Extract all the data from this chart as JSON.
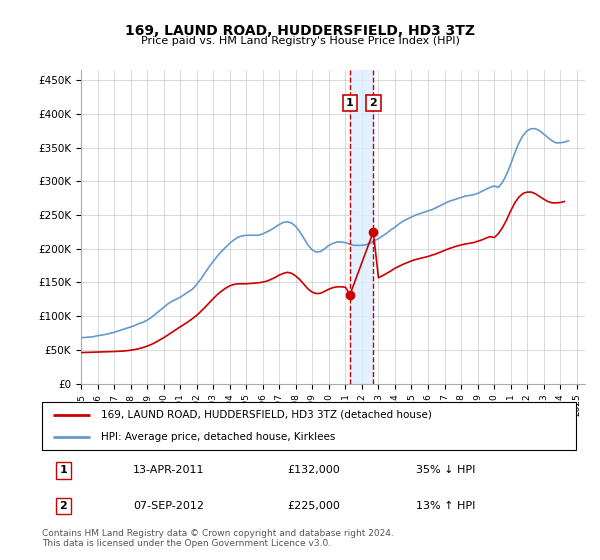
{
  "title": "169, LAUND ROAD, HUDDERSFIELD, HD3 3TZ",
  "subtitle": "Price paid vs. HM Land Registry's House Price Index (HPI)",
  "ylabel_ticks": [
    "£0",
    "£50K",
    "£100K",
    "£150K",
    "£200K",
    "£250K",
    "£300K",
    "£350K",
    "£400K",
    "£450K"
  ],
  "ylim": [
    0,
    465000
  ],
  "xlim_start": 1995.0,
  "xlim_end": 2025.5,
  "transaction1": {
    "date": "13-APR-2011",
    "price": 132000,
    "label": "1",
    "x": 2011.28,
    "hpi_relation": "35% ↓ HPI"
  },
  "transaction2": {
    "date": "07-SEP-2012",
    "price": 225000,
    "label": "2",
    "x": 2012.69,
    "hpi_relation": "13% ↑ HPI"
  },
  "legend_property": "169, LAUND ROAD, HUDDERSFIELD, HD3 3TZ (detached house)",
  "legend_hpi": "HPI: Average price, detached house, Kirklees",
  "footnote": "Contains HM Land Registry data © Crown copyright and database right 2024.\nThis data is licensed under the Open Government Licence v3.0.",
  "color_property": "#cc0000",
  "color_hpi": "#6699cc",
  "color_vline": "#cc0000",
  "color_box_fill": "#ddeeff",
  "grid_color": "#cccccc",
  "background_color": "#ffffff",
  "hpi_data_x": [
    1995.0,
    1995.25,
    1995.5,
    1995.75,
    1996.0,
    1996.25,
    1996.5,
    1996.75,
    1997.0,
    1997.25,
    1997.5,
    1997.75,
    1998.0,
    1998.25,
    1998.5,
    1998.75,
    1999.0,
    1999.25,
    1999.5,
    1999.75,
    2000.0,
    2000.25,
    2000.5,
    2000.75,
    2001.0,
    2001.25,
    2001.5,
    2001.75,
    2002.0,
    2002.25,
    2002.5,
    2002.75,
    2003.0,
    2003.25,
    2003.5,
    2003.75,
    2004.0,
    2004.25,
    2004.5,
    2004.75,
    2005.0,
    2005.25,
    2005.5,
    2005.75,
    2006.0,
    2006.25,
    2006.5,
    2006.75,
    2007.0,
    2007.25,
    2007.5,
    2007.75,
    2008.0,
    2008.25,
    2008.5,
    2008.75,
    2009.0,
    2009.25,
    2009.5,
    2009.75,
    2010.0,
    2010.25,
    2010.5,
    2010.75,
    2011.0,
    2011.25,
    2011.5,
    2011.75,
    2012.0,
    2012.25,
    2012.5,
    2012.75,
    2013.0,
    2013.25,
    2013.5,
    2013.75,
    2014.0,
    2014.25,
    2014.5,
    2014.75,
    2015.0,
    2015.25,
    2015.5,
    2015.75,
    2016.0,
    2016.25,
    2016.5,
    2016.75,
    2017.0,
    2017.25,
    2017.5,
    2017.75,
    2018.0,
    2018.25,
    2018.5,
    2018.75,
    2019.0,
    2019.25,
    2019.5,
    2019.75,
    2020.0,
    2020.25,
    2020.5,
    2020.75,
    2021.0,
    2021.25,
    2021.5,
    2021.75,
    2022.0,
    2022.25,
    2022.5,
    2022.75,
    2023.0,
    2023.25,
    2023.5,
    2023.75,
    2024.0,
    2024.25,
    2024.5
  ],
  "hpi_data_y": [
    68000,
    68500,
    69000,
    69500,
    71000,
    72000,
    73000,
    74500,
    76000,
    78000,
    80000,
    82000,
    84000,
    86000,
    89000,
    91000,
    94000,
    98000,
    103000,
    108000,
    113000,
    118000,
    122000,
    125000,
    128000,
    132000,
    136000,
    140000,
    147000,
    155000,
    164000,
    173000,
    181000,
    189000,
    196000,
    202000,
    208000,
    213000,
    217000,
    219000,
    220000,
    220000,
    220000,
    220000,
    222000,
    225000,
    228000,
    232000,
    236000,
    239000,
    240000,
    238000,
    233000,
    225000,
    215000,
    205000,
    198000,
    195000,
    196000,
    200000,
    205000,
    208000,
    210000,
    210000,
    209000,
    207000,
    205000,
    205000,
    205000,
    206000,
    208000,
    212000,
    215000,
    219000,
    223000,
    228000,
    232000,
    237000,
    241000,
    244000,
    247000,
    250000,
    252000,
    254000,
    256000,
    258000,
    261000,
    264000,
    267000,
    270000,
    272000,
    274000,
    276000,
    278000,
    279000,
    280000,
    282000,
    285000,
    288000,
    291000,
    293000,
    291000,
    298000,
    310000,
    325000,
    342000,
    357000,
    368000,
    375000,
    378000,
    378000,
    375000,
    370000,
    365000,
    360000,
    357000,
    357000,
    358000,
    360000
  ],
  "property_data_x": [
    1995.0,
    1995.25,
    1995.5,
    1995.75,
    1996.0,
    1996.25,
    1996.5,
    1996.75,
    1997.0,
    1997.25,
    1997.5,
    1997.75,
    1998.0,
    1998.25,
    1998.5,
    1998.75,
    1999.0,
    1999.25,
    1999.5,
    1999.75,
    2000.0,
    2000.25,
    2000.5,
    2000.75,
    2001.0,
    2001.25,
    2001.5,
    2001.75,
    2002.0,
    2002.25,
    2002.5,
    2002.75,
    2003.0,
    2003.25,
    2003.5,
    2003.75,
    2004.0,
    2004.25,
    2004.5,
    2004.75,
    2005.0,
    2005.25,
    2005.5,
    2005.75,
    2006.0,
    2006.25,
    2006.5,
    2006.75,
    2007.0,
    2007.25,
    2007.5,
    2007.75,
    2008.0,
    2008.25,
    2008.5,
    2008.75,
    2009.0,
    2009.25,
    2009.5,
    2009.75,
    2010.0,
    2010.25,
    2010.5,
    2010.75,
    2011.0,
    2011.28,
    2012.69,
    2013.0,
    2013.25,
    2013.5,
    2013.75,
    2014.0,
    2014.25,
    2014.5,
    2014.75,
    2015.0,
    2015.25,
    2015.5,
    2015.75,
    2016.0,
    2016.25,
    2016.5,
    2016.75,
    2017.0,
    2017.25,
    2017.5,
    2017.75,
    2018.0,
    2018.25,
    2018.5,
    2018.75,
    2019.0,
    2019.25,
    2019.5,
    2019.75,
    2020.0,
    2020.25,
    2020.5,
    2020.75,
    2021.0,
    2021.25,
    2021.5,
    2021.75,
    2022.0,
    2022.25,
    2022.5,
    2022.75,
    2023.0,
    2023.25,
    2023.5,
    2023.75,
    2024.0,
    2024.25,
    2024.5
  ],
  "property_data_y": [
    46000,
    46200,
    46400,
    46600,
    46800,
    47000,
    47200,
    47400,
    47600,
    47900,
    48200,
    48700,
    49500,
    50500,
    51800,
    53500,
    55500,
    58000,
    61000,
    64500,
    68000,
    72000,
    76000,
    80000,
    84000,
    88000,
    92000,
    96500,
    101000,
    107000,
    113000,
    119500,
    126000,
    132000,
    137000,
    141500,
    145000,
    147000,
    148000,
    148000,
    148000,
    148500,
    149000,
    149500,
    150500,
    152000,
    154500,
    157500,
    161000,
    163500,
    165000,
    163500,
    159500,
    154000,
    147000,
    140000,
    135500,
    133500,
    134000,
    136800,
    140000,
    142300,
    143500,
    143500,
    143000,
    132000,
    225000,
    157000,
    160000,
    163500,
    167000,
    171000,
    174000,
    177000,
    179500,
    182000,
    184000,
    185500,
    187000,
    188500,
    190500,
    192500,
    195000,
    197500,
    200000,
    202000,
    204000,
    205500,
    207000,
    208000,
    209000,
    211000,
    213000,
    215500,
    218000,
    216500,
    222000,
    231000,
    242500,
    256000,
    268000,
    276500,
    282000,
    284000,
    284000,
    281500,
    277500,
    273500,
    270000,
    268000,
    268000,
    268500,
    270000
  ],
  "xtick_years": [
    1995,
    1996,
    1997,
    1998,
    1999,
    2000,
    2001,
    2002,
    2003,
    2004,
    2005,
    2006,
    2007,
    2008,
    2009,
    2010,
    2011,
    2012,
    2013,
    2014,
    2015,
    2016,
    2017,
    2018,
    2019,
    2020,
    2021,
    2022,
    2023,
    2024,
    2025
  ]
}
